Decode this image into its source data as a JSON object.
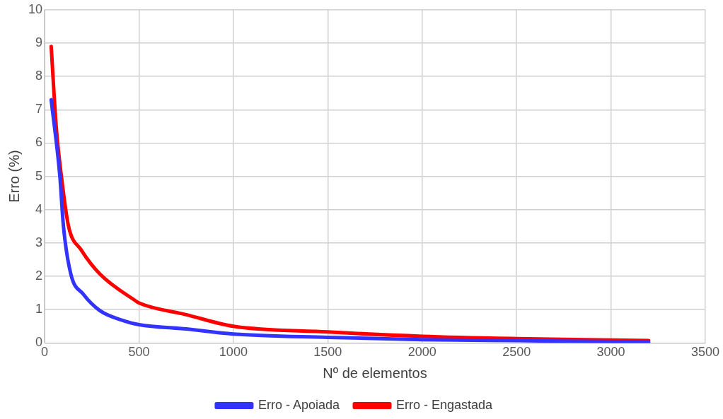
{
  "chart_data": {
    "type": "line",
    "xlabel": "Nº de elementos",
    "ylabel": "Erro (%)",
    "xlim": [
      0,
      3500
    ],
    "xticks": [
      0,
      500,
      1000,
      1500,
      2000,
      2500,
      3000,
      3500
    ],
    "ylim": [
      0,
      10
    ],
    "yticks": [
      0,
      1,
      2,
      3,
      4,
      5,
      6,
      7,
      8,
      9,
      10
    ],
    "grid": true,
    "legend": "bottom",
    "marker": "none",
    "line_style": "solid",
    "series": [
      {
        "name": "Erro - Apoiada",
        "color": "#3333ff",
        "x": [
          35,
          81,
          100,
          139,
          204,
          293,
          424,
          500,
          750,
          1000,
          1500,
          2000,
          2500,
          3200
        ],
        "values": [
          7.3,
          5.0,
          3.5,
          2.07,
          1.47,
          0.97,
          0.66,
          0.55,
          0.42,
          0.27,
          0.17,
          0.1,
          0.07,
          0.03
        ]
      },
      {
        "name": "Erro - Engastada",
        "color": "#ff0000",
        "x": [
          35,
          62,
          89,
          127,
          193,
          293,
          486,
          500,
          750,
          1000,
          1500,
          2000,
          2500,
          3200
        ],
        "values": [
          8.9,
          6.46,
          5.0,
          3.5,
          2.8,
          2.07,
          1.25,
          1.2,
          0.85,
          0.5,
          0.33,
          0.2,
          0.13,
          0.07
        ]
      }
    ]
  }
}
